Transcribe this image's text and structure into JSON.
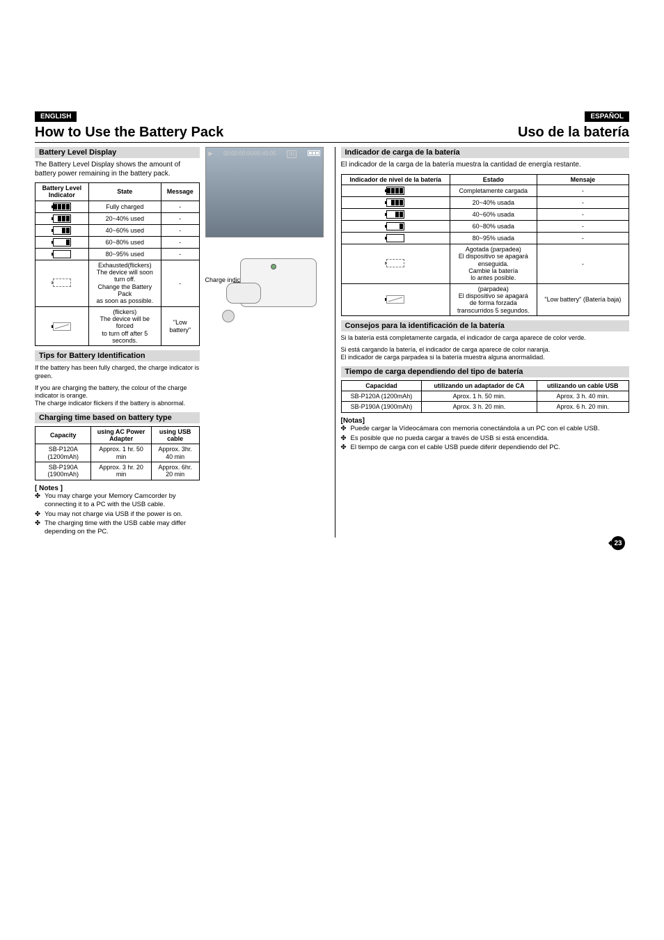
{
  "lang": {
    "en": "ENGLISH",
    "es": "ESPAÑOL"
  },
  "titles": {
    "en": "How to Use the Battery Pack",
    "es": "Uso de la batería"
  },
  "en": {
    "s1_head": "Battery Level Display",
    "s1_para": "The Battery Level Display shows the amount of battery power remaining in the battery pack.",
    "tbl1": {
      "h1": "Battery Level Indicator",
      "h2": "State",
      "h3": "Message",
      "rows": [
        {
          "state": "Fully charged",
          "msg": "-",
          "segs": 4
        },
        {
          "state": "20~40% used",
          "msg": "-",
          "segs": 3
        },
        {
          "state": "40~60% used",
          "msg": "-",
          "segs": 2
        },
        {
          "state": "60~80% used",
          "msg": "-",
          "segs": 1
        },
        {
          "state": "80~95% used",
          "msg": "-",
          "segs": 0
        },
        {
          "state": "Exhausted(flickers)\nThe device will soon turn off.\nChange the Battery Pack\nas soon as possible.",
          "msg": "-",
          "segs": -1
        },
        {
          "state": "(flickers)\nThe device will be forced\nto turn off after 5 seconds.",
          "msg": "\"Low battery\"",
          "segs": -2
        }
      ]
    },
    "s2_head": "Tips for Battery Identification",
    "s2_p1": "If the battery has been fully charged, the charge indicator is green.",
    "s2_p2": "If you are charging the battery, the colour of the charge indicator is orange.",
    "s2_p3": "The charge indicator flickers if the battery is abnormal.",
    "s3_head": "Charging time based on battery type",
    "tbl2": {
      "h1": "Capacity",
      "h2": "using AC Power Adapter",
      "h3": "using USB cable",
      "r1": {
        "cap": "SB-P120A (1200mAh)",
        "ac": "Approx. 1 hr. 50 min",
        "usb": "Approx. 3hr. 40 min"
      },
      "r2": {
        "cap": "SB-P190A (1900mAh)",
        "ac": "Approx. 3 hr. 20 min",
        "usb": "Approx. 6hr. 20 min"
      }
    },
    "notes_head": "[ Notes ]",
    "n1": "You may charge your Memory Camcorder  by connecting it to a PC with the USB cable.",
    "n2": "You may not charge via USB if the power is  on.",
    "n3": "The charging time with the USB cable may differ depending on the PC."
  },
  "es": {
    "s1_head": "Indicador de carga de la batería",
    "s1_para": "El indicador de la carga de la batería muestra la cantidad de energía restante.",
    "tbl1": {
      "h1": "Indicador de nivel de la batería",
      "h2": "Estado",
      "h3": "Mensaje",
      "rows": [
        {
          "state": "Completamente cargada",
          "msg": "-",
          "segs": 4
        },
        {
          "state": "20~40% usada",
          "msg": "-",
          "segs": 3
        },
        {
          "state": "40~60% usada",
          "msg": "-",
          "segs": 2
        },
        {
          "state": "60~80% usada",
          "msg": "-",
          "segs": 1
        },
        {
          "state": "80~95% usada",
          "msg": "-",
          "segs": 0
        },
        {
          "state": "Agotada (parpadea)\nEl dispositivo se apagará\nenseguida.\nCambie la batería\nlo antes posible.",
          "msg": "-",
          "segs": -1
        },
        {
          "state": "(parpadea)\nEl dispositivo se apagará\nde forma forzada\ntranscurridos 5 segundos.",
          "msg": "\"Low battery\" (Batería baja)",
          "segs": -2
        }
      ]
    },
    "s2_head": "Consejos para la identificación de la batería",
    "s2_p1": "Si la batería está completamente cargada, el indicador de carga aparece de color verde.",
    "s2_p2": "Si está cargando la batería, el indicador de carga aparece de color naranja.",
    "s2_p3": "El indicador de carga parpadea si la batería muestra alguna anormalidad.",
    "s3_head": "Tiempo de carga dependiendo del tipo de batería",
    "tbl2": {
      "h1": "Capacidad",
      "h2": "utilizando un adaptador de CA",
      "h3": "utilizando un cable USB",
      "r1": {
        "cap": "SB-P120A (1200mAh)",
        "ac": "Aprox. 1 h. 50 min.",
        "usb": "Aprox. 3 h. 40 min."
      },
      "r2": {
        "cap": "SB-P190A (1900mAh)",
        "ac": "Aprox. 3 h. 20 min.",
        "usb": "Aprox. 6 h. 20 min."
      }
    },
    "notes_head": "[Notas]",
    "n1": "Puede cargar la Vídeocámara con memoria conectándola a un PC con el cable USB.",
    "n2": "Es posible que no pueda cargar a través de USB si está encendida.",
    "n3": "El tiempo de carga con el cable USB puede diferir dependiendo del PC."
  },
  "graphic": {
    "osd": "00:00:00:00/00:40:05",
    "osd_in": "IN",
    "charge_label": "Charge indicator"
  },
  "pageno": "23",
  "colors": {
    "section_bg": "#d9d9d9"
  }
}
